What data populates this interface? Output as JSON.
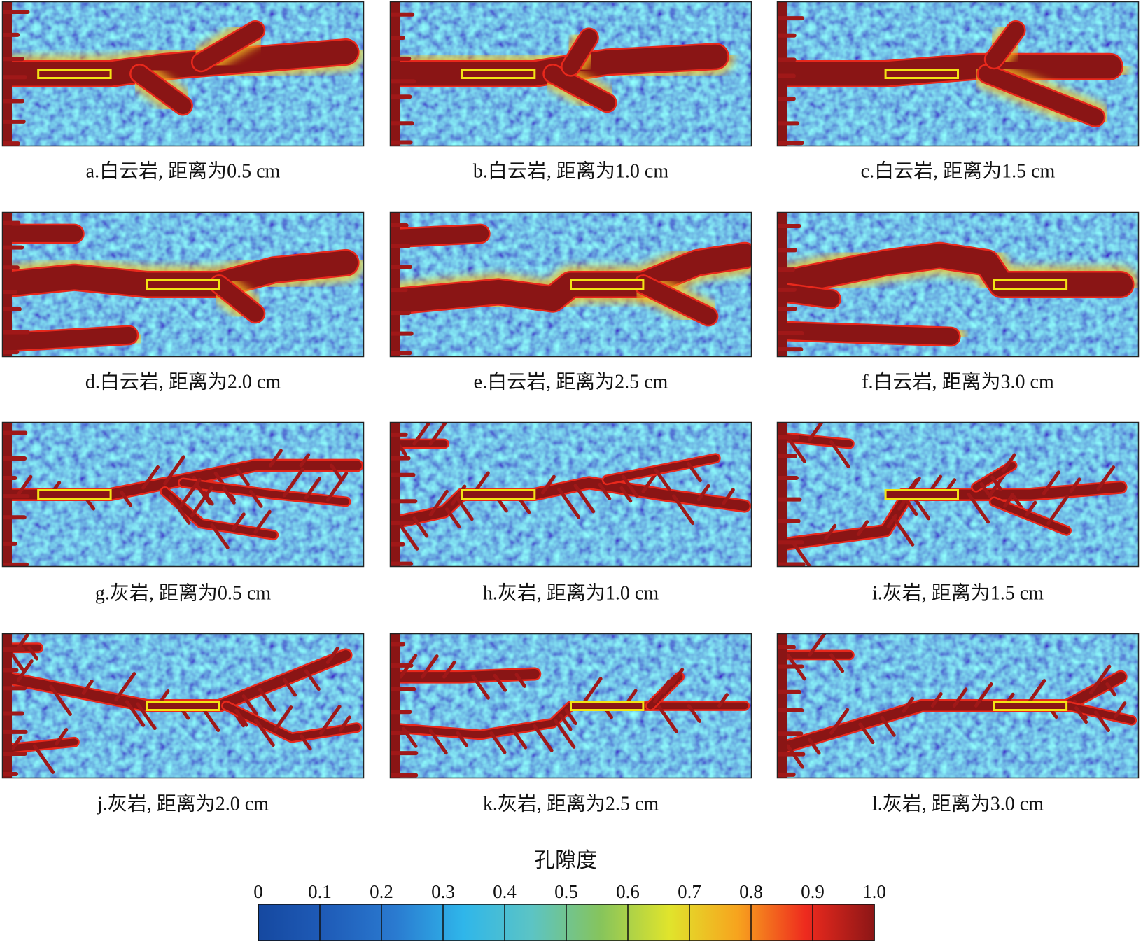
{
  "panels": [
    {
      "label": "a.白云岩, 距离为0.5 cm"
    },
    {
      "label": "b.白云岩, 距离为1.0 cm"
    },
    {
      "label": "c.白云岩, 距离为1.5 cm"
    },
    {
      "label": "d.白云岩, 距离为2.0 cm"
    },
    {
      "label": "e.白云岩, 距离为2.5 cm"
    },
    {
      "label": "f.白云岩, 距离为3.0 cm"
    },
    {
      "label": "g.灰岩, 距离为0.5 cm"
    },
    {
      "label": "h.灰岩, 距离为1.0 cm"
    },
    {
      "label": "i.灰岩, 距离为1.5 cm"
    },
    {
      "label": "j.灰岩, 距离为2.0 cm"
    },
    {
      "label": "k.灰岩, 距离为2.5 cm"
    },
    {
      "label": "l.灰岩, 距离为3.0 cm"
    }
  ],
  "colorbar": {
    "title": "孔隙度",
    "lim": [
      0,
      1
    ],
    "ticks": [
      0,
      0.1,
      0.2,
      0.3,
      0.4,
      0.5,
      0.6,
      0.7,
      0.8,
      0.9,
      {
        "value": 1,
        "label": "1.0"
      }
    ],
    "colors": [
      "#1548a0",
      "#1f5cb8",
      "#2a7ad0",
      "#2fb6ea",
      "#5cc4c4",
      "#86c45c",
      "#e0e42c",
      "#f7a41e",
      "#ee2a1e",
      "#8c1616"
    ]
  }
}
